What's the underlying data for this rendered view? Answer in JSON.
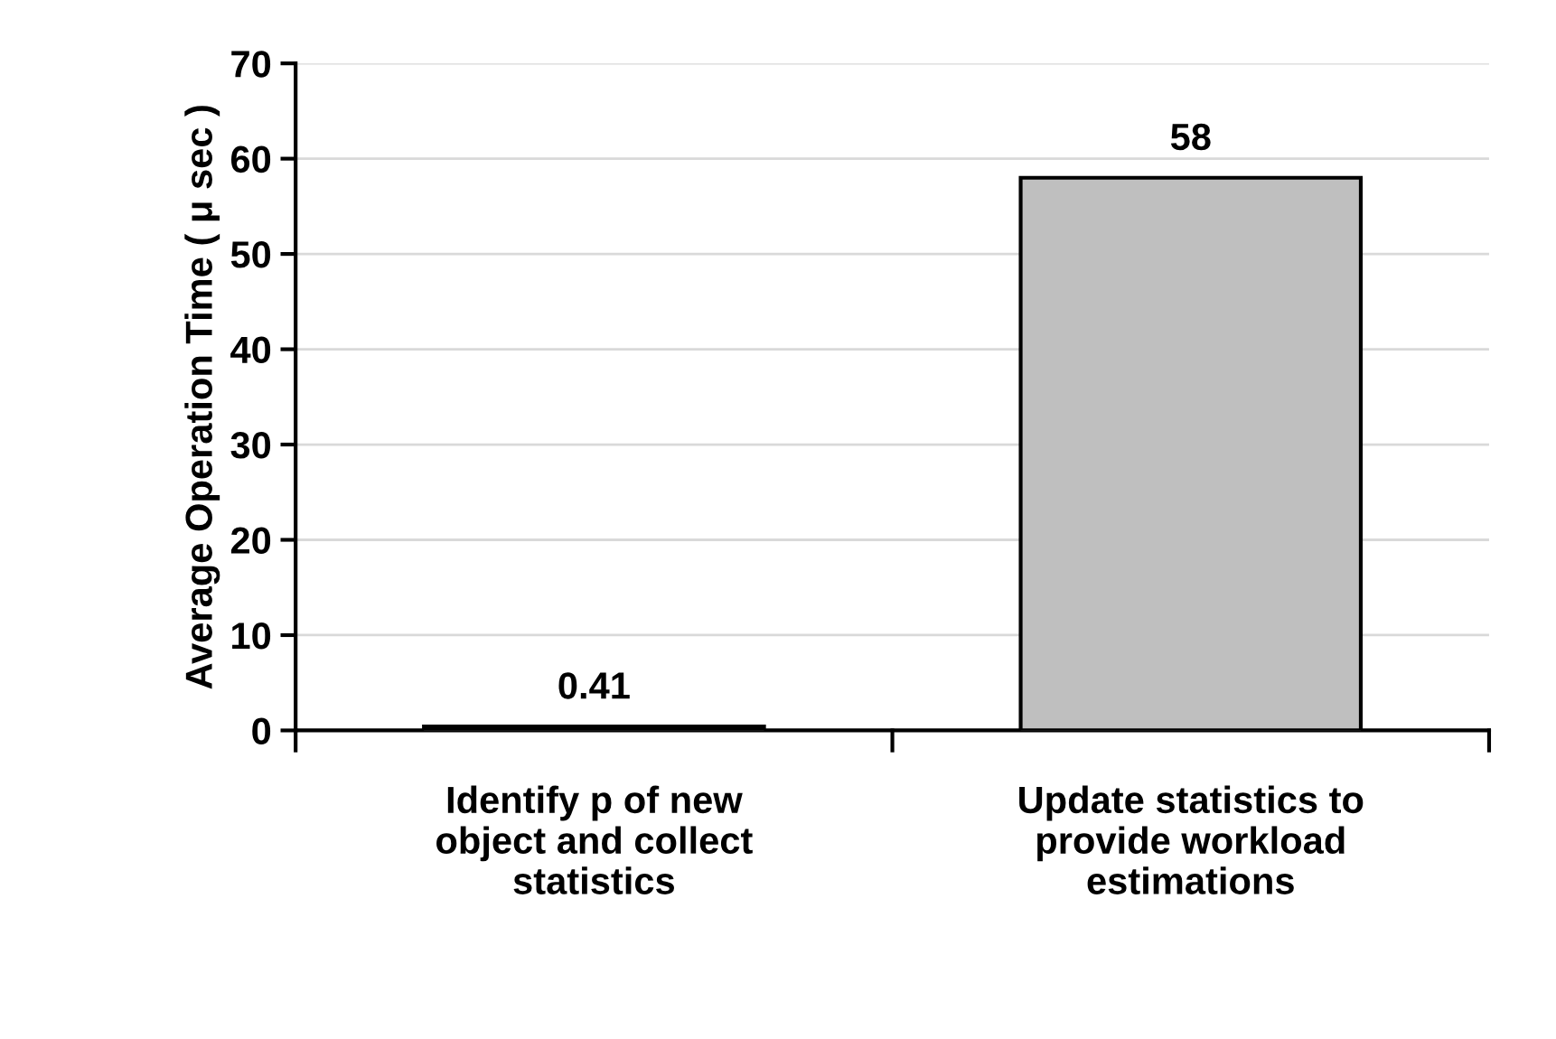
{
  "chart_data": {
    "type": "bar",
    "ylabel": "Average Operation Time ( μ sec )",
    "categories": [
      "Identify p of new\nobject and collect\nstatistics",
      "Update statistics to\nprovide workload\nestimations"
    ],
    "values": [
      0.41,
      58
    ],
    "color": "#bfbfbf",
    "ylim": [
      0,
      70
    ],
    "yticks": [
      0,
      10,
      20,
      30,
      40,
      50,
      60,
      70
    ],
    "grid": "y",
    "data_labels": true,
    "legend": false
  }
}
